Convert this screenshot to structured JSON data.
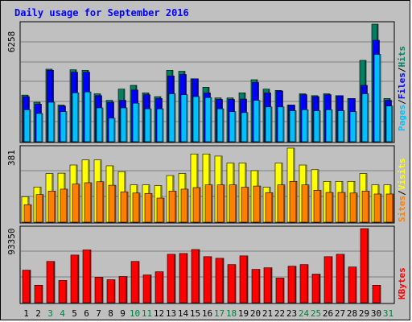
{
  "title": "Daily usage for September 2016",
  "colors": {
    "background": "#c0c0c0",
    "title": "#0000ff",
    "hits": "#008060",
    "files": "#0000ff",
    "pages": "#00c0ff",
    "visits": "#ffff00",
    "sites": "#ff8000",
    "kbytes": "#ff0000",
    "weekend_label": "#008040",
    "weekday_label": "#000000"
  },
  "legend": {
    "pages": "Pages",
    "files": "Files",
    "hits": "Hits",
    "sites": "Sites",
    "visits": "Visits",
    "kbytes": "KBytes",
    "sep": "/"
  },
  "chart_data": [
    {
      "type": "bar",
      "name": "hits-files-pages",
      "ymax_label": "6258",
      "ylim": [
        0,
        6258
      ],
      "categories": [
        "1",
        "2",
        "3",
        "4",
        "5",
        "6",
        "7",
        "8",
        "9",
        "10",
        "11",
        "12",
        "13",
        "14",
        "15",
        "16",
        "17",
        "18",
        "19",
        "20",
        "21",
        "22",
        "23",
        "24",
        "25",
        "26",
        "27",
        "28",
        "29",
        "30",
        "31"
      ],
      "series": [
        {
          "name": "Hits",
          "values": [
            2480,
            2100,
            3860,
            1950,
            3830,
            3800,
            2550,
            2200,
            2800,
            3000,
            2600,
            2400,
            3800,
            3750,
            3350,
            2900,
            2330,
            2330,
            2600,
            3300,
            2800,
            2730,
            1950,
            2550,
            2450,
            2550,
            2450,
            2300,
            4330,
            6258,
            2300
          ]
        },
        {
          "name": "Files",
          "values": [
            2400,
            2000,
            3800,
            1900,
            3700,
            3700,
            2450,
            2100,
            2200,
            2750,
            2500,
            2300,
            3500,
            3580,
            3350,
            2600,
            2250,
            2250,
            2270,
            3150,
            2600,
            2700,
            1950,
            2500,
            2400,
            2500,
            2450,
            2300,
            3000,
            5400,
            2200
          ]
        },
        {
          "name": "Pages",
          "values": [
            1700,
            1500,
            2100,
            1600,
            2600,
            2650,
            1800,
            1250,
            1800,
            2050,
            1750,
            1750,
            2550,
            2500,
            2400,
            2350,
            1750,
            1600,
            1550,
            2200,
            1850,
            1850,
            1650,
            1700,
            1650,
            1700,
            1650,
            1600,
            2550,
            4650,
            1900
          ]
        }
      ]
    },
    {
      "type": "bar",
      "name": "visits-sites",
      "ymax_label": "381",
      "ylim": [
        0,
        381
      ],
      "categories": [
        "1",
        "2",
        "3",
        "4",
        "5",
        "6",
        "7",
        "8",
        "9",
        "10",
        "11",
        "12",
        "13",
        "14",
        "15",
        "16",
        "17",
        "18",
        "19",
        "20",
        "21",
        "22",
        "23",
        "24",
        "25",
        "26",
        "27",
        "28",
        "29",
        "30",
        "31"
      ],
      "series": [
        {
          "name": "Visits",
          "values": [
            131,
            181,
            250,
            252,
            294,
            320,
            320,
            290,
            260,
            192,
            192,
            188,
            240,
            250,
            351,
            351,
            340,
            304,
            304,
            265,
            180,
            304,
            381,
            294,
            270,
            210,
            210,
            210,
            250,
            192,
            192
          ]
        },
        {
          "name": "Sites",
          "values": [
            90,
            142,
            160,
            170,
            196,
            203,
            208,
            190,
            156,
            150,
            148,
            124,
            160,
            170,
            178,
            192,
            192,
            192,
            180,
            186,
            152,
            192,
            210,
            192,
            164,
            153,
            153,
            150,
            160,
            145,
            145
          ]
        }
      ]
    },
    {
      "type": "bar",
      "name": "kbytes",
      "ymax_label": "93350",
      "ylim": [
        0,
        93350
      ],
      "categories": [
        "1",
        "2",
        "3",
        "4",
        "5",
        "6",
        "7",
        "8",
        "9",
        "10",
        "11",
        "12",
        "13",
        "14",
        "15",
        "16",
        "17",
        "18",
        "19",
        "20",
        "21",
        "22",
        "23",
        "24",
        "25",
        "26",
        "27",
        "28",
        "29",
        "30",
        "31"
      ],
      "series": [
        {
          "name": "KBytes",
          "values": [
            41000,
            22000,
            52000,
            28000,
            60000,
            66500,
            32000,
            29000,
            33000,
            52000,
            35000,
            39000,
            61000,
            62000,
            67000,
            58000,
            56000,
            48000,
            59000,
            42000,
            44000,
            31000,
            46000,
            48000,
            36000,
            58000,
            61000,
            45000,
            93350,
            22000,
            0
          ]
        }
      ]
    }
  ],
  "days": [
    {
      "label": "1",
      "weekend": false
    },
    {
      "label": "2",
      "weekend": false
    },
    {
      "label": "3",
      "weekend": true
    },
    {
      "label": "4",
      "weekend": true
    },
    {
      "label": "5",
      "weekend": false
    },
    {
      "label": "6",
      "weekend": false
    },
    {
      "label": "7",
      "weekend": false
    },
    {
      "label": "8",
      "weekend": false
    },
    {
      "label": "9",
      "weekend": false
    },
    {
      "label": "10",
      "weekend": true
    },
    {
      "label": "11",
      "weekend": true
    },
    {
      "label": "12",
      "weekend": false
    },
    {
      "label": "13",
      "weekend": false
    },
    {
      "label": "14",
      "weekend": false
    },
    {
      "label": "15",
      "weekend": false
    },
    {
      "label": "16",
      "weekend": false
    },
    {
      "label": "17",
      "weekend": true
    },
    {
      "label": "18",
      "weekend": true
    },
    {
      "label": "19",
      "weekend": false
    },
    {
      "label": "20",
      "weekend": false
    },
    {
      "label": "21",
      "weekend": false
    },
    {
      "label": "22",
      "weekend": false
    },
    {
      "label": "23",
      "weekend": false
    },
    {
      "label": "24",
      "weekend": true
    },
    {
      "label": "25",
      "weekend": true
    },
    {
      "label": "26",
      "weekend": false
    },
    {
      "label": "27",
      "weekend": false
    },
    {
      "label": "28",
      "weekend": false
    },
    {
      "label": "29",
      "weekend": false
    },
    {
      "label": "30",
      "weekend": false
    },
    {
      "label": "31",
      "weekend": true
    }
  ]
}
